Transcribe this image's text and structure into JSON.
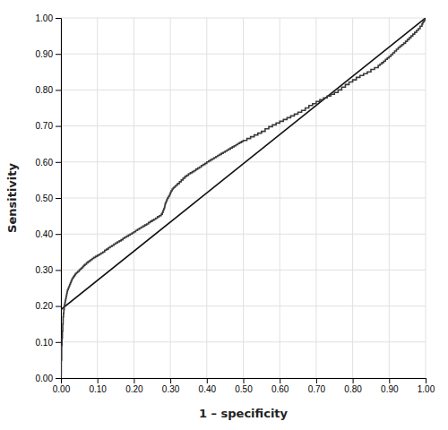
{
  "chart_data": {
    "type": "line",
    "xlabel": "1 – specificity",
    "ylabel": "Sensitivity",
    "xlim": [
      0.0,
      1.0
    ],
    "ylim": [
      0.0,
      1.0
    ],
    "xticks": [
      {
        "value": 0.0,
        "label": "0.00"
      },
      {
        "value": 0.1,
        "label": "0.10"
      },
      {
        "value": 0.2,
        "label": "0.20"
      },
      {
        "value": 0.3,
        "label": "0.30"
      },
      {
        "value": 0.4,
        "label": "0.40"
      },
      {
        "value": 0.5,
        "label": "0.50"
      },
      {
        "value": 0.6,
        "label": "0.60"
      },
      {
        "value": 0.7,
        "label": "0.70"
      },
      {
        "value": 0.8,
        "label": "0.80"
      },
      {
        "value": 0.9,
        "label": "0.90"
      },
      {
        "value": 1.0,
        "label": "1.00"
      }
    ],
    "yticks": [
      {
        "value": 0.0,
        "label": "0.00"
      },
      {
        "value": 0.1,
        "label": "0.10"
      },
      {
        "value": 0.2,
        "label": "0.20"
      },
      {
        "value": 0.3,
        "label": "0.30"
      },
      {
        "value": 0.4,
        "label": "0.40"
      },
      {
        "value": 0.5,
        "label": "0.50"
      },
      {
        "value": 0.6,
        "label": "0.60"
      },
      {
        "value": 0.7,
        "label": "0.70"
      },
      {
        "value": 0.8,
        "label": "0.80"
      },
      {
        "value": 0.9,
        "label": "0.90"
      },
      {
        "value": 1.0,
        "label": "1.00"
      }
    ],
    "grid": true,
    "series": [
      {
        "type": "line",
        "line_style": "solid",
        "color": "#111111",
        "x": [
          0.0,
          1.0
        ],
        "values": [
          0.19,
          1.0
        ]
      },
      {
        "type": "line",
        "line_style": "step",
        "color": "#3a3a3a",
        "x": [
          0,
          0,
          0.001,
          0.001,
          0.001,
          0.001,
          0.001,
          0.002,
          0.002,
          0.002,
          0.002,
          0.002,
          0.003,
          0.003,
          0.003,
          0.004,
          0.004,
          0.004,
          0.005,
          0.005,
          0.005,
          0.006,
          0.006,
          0.006,
          0.007,
          0.007,
          0.008,
          0.008,
          0.009,
          0.009,
          0.01,
          0.01,
          0.011,
          0.012,
          0.013,
          0.014,
          0.015,
          0.016,
          0.017,
          0.018,
          0.02,
          0.022,
          0.024,
          0.026,
          0.028,
          0.03,
          0.032,
          0.034,
          0.036,
          0.038,
          0.04,
          0.043,
          0.046,
          0.05,
          0.053,
          0.056,
          0.06,
          0.063,
          0.066,
          0.07,
          0.074,
          0.078,
          0.082,
          0.086,
          0.09,
          0.095,
          0.1,
          0.105,
          0.11,
          0.115,
          0.12,
          0.125,
          0.13,
          0.135,
          0.14,
          0.145,
          0.15,
          0.155,
          0.16,
          0.165,
          0.17,
          0.175,
          0.18,
          0.185,
          0.19,
          0.195,
          0.2,
          0.205,
          0.21,
          0.215,
          0.22,
          0.225,
          0.23,
          0.235,
          0.24,
          0.245,
          0.25,
          0.255,
          0.26,
          0.265,
          0.27,
          0.275,
          0.278,
          0.28,
          0.282,
          0.284,
          0.285,
          0.286,
          0.288,
          0.29,
          0.292,
          0.295,
          0.298,
          0.3,
          0.302,
          0.305,
          0.308,
          0.31,
          0.313,
          0.316,
          0.32,
          0.325,
          0.33,
          0.335,
          0.34,
          0.345,
          0.35,
          0.355,
          0.36,
          0.365,
          0.37,
          0.375,
          0.38,
          0.385,
          0.39,
          0.395,
          0.4,
          0.405,
          0.41,
          0.415,
          0.42,
          0.425,
          0.43,
          0.435,
          0.44,
          0.445,
          0.45,
          0.455,
          0.46,
          0.465,
          0.47,
          0.475,
          0.48,
          0.485,
          0.49,
          0.495,
          0.5,
          0.51,
          0.52,
          0.53,
          0.54,
          0.55,
          0.56,
          0.57,
          0.58,
          0.59,
          0.6,
          0.61,
          0.62,
          0.63,
          0.64,
          0.65,
          0.66,
          0.67,
          0.68,
          0.69,
          0.7,
          0.71,
          0.72,
          0.73,
          0.74,
          0.75,
          0.76,
          0.77,
          0.78,
          0.79,
          0.8,
          0.81,
          0.82,
          0.83,
          0.84,
          0.85,
          0.86,
          0.87,
          0.875,
          0.88,
          0.885,
          0.89,
          0.895,
          0.9,
          0.905,
          0.91,
          0.915,
          0.92,
          0.925,
          0.93,
          0.935,
          0.94,
          0.945,
          0.95,
          0.955,
          0.96,
          0.965,
          0.97,
          0.975,
          0.98,
          0.985,
          0.99,
          0.992,
          0.994,
          0.996,
          0.998,
          1
        ],
        "values": [
          0,
          0.01,
          0.01,
          0.02,
          0.03,
          0.04,
          0.05,
          0.05,
          0.06,
          0.07,
          0.08,
          0.09,
          0.09,
          0.1,
          0.11,
          0.11,
          0.12,
          0.13,
          0.13,
          0.14,
          0.15,
          0.15,
          0.16,
          0.17,
          0.17,
          0.18,
          0.18,
          0.19,
          0.19,
          0.2,
          0.2,
          0.205,
          0.21,
          0.215,
          0.22,
          0.225,
          0.23,
          0.235,
          0.24,
          0.245,
          0.25,
          0.255,
          0.26,
          0.265,
          0.27,
          0.275,
          0.278,
          0.281,
          0.284,
          0.287,
          0.29,
          0.293,
          0.296,
          0.3,
          0.303,
          0.306,
          0.31,
          0.313,
          0.316,
          0.32,
          0.323,
          0.326,
          0.329,
          0.332,
          0.335,
          0.338,
          0.341,
          0.344,
          0.347,
          0.35,
          0.355,
          0.358,
          0.362,
          0.365,
          0.368,
          0.372,
          0.375,
          0.378,
          0.381,
          0.384,
          0.388,
          0.391,
          0.394,
          0.397,
          0.4,
          0.403,
          0.406,
          0.41,
          0.413,
          0.416,
          0.419,
          0.422,
          0.425,
          0.428,
          0.432,
          0.435,
          0.438,
          0.441,
          0.444,
          0.448,
          0.451,
          0.455,
          0.46,
          0.465,
          0.47,
          0.475,
          0.48,
          0.485,
          0.49,
          0.495,
          0.5,
          0.505,
          0.51,
          0.515,
          0.52,
          0.525,
          0.528,
          0.53,
          0.533,
          0.536,
          0.54,
          0.545,
          0.55,
          0.555,
          0.56,
          0.563,
          0.567,
          0.57,
          0.573,
          0.576,
          0.58,
          0.583,
          0.586,
          0.59,
          0.593,
          0.596,
          0.6,
          0.603,
          0.606,
          0.609,
          0.612,
          0.615,
          0.618,
          0.621,
          0.624,
          0.627,
          0.63,
          0.633,
          0.636,
          0.639,
          0.642,
          0.645,
          0.648,
          0.651,
          0.654,
          0.657,
          0.66,
          0.665,
          0.67,
          0.675,
          0.68,
          0.685,
          0.692,
          0.698,
          0.703,
          0.708,
          0.713,
          0.718,
          0.723,
          0.728,
          0.733,
          0.738,
          0.743,
          0.75,
          0.757,
          0.762,
          0.768,
          0.773,
          0.778,
          0.783,
          0.788,
          0.793,
          0.8,
          0.808,
          0.815,
          0.822,
          0.828,
          0.835,
          0.84,
          0.845,
          0.85,
          0.857,
          0.862,
          0.868,
          0.872,
          0.876,
          0.88,
          0.885,
          0.889,
          0.893,
          0.898,
          0.903,
          0.908,
          0.913,
          0.918,
          0.922,
          0.926,
          0.93,
          0.935,
          0.94,
          0.945,
          0.95,
          0.955,
          0.96,
          0.965,
          0.97,
          0.977,
          0.983,
          0.987,
          0.99,
          0.993,
          0.997,
          1
        ]
      }
    ]
  }
}
